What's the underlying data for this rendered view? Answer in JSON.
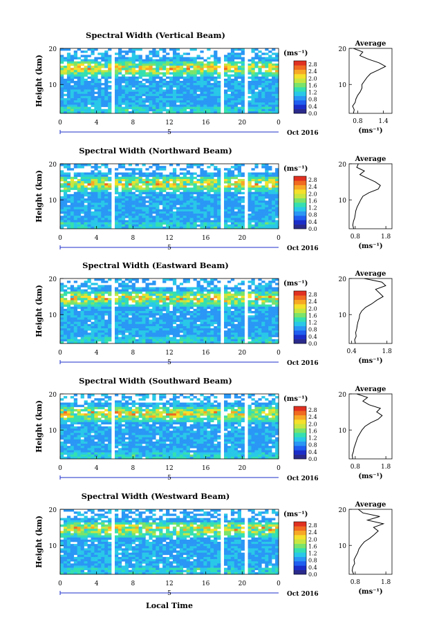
{
  "figure": {
    "xlabel": "Local Time",
    "date_label": "Oct 2016",
    "unit_label": "(ms⁻¹)",
    "ylabel": "Height (km)",
    "avg_title": "Average",
    "colors": {
      "background": "#ffffff",
      "field_base": "#2f55e8",
      "colormap": [
        "#2a2a8c",
        "#1b2dc8",
        "#1f5ef0",
        "#2a96f5",
        "#29c8e8",
        "#35e0b0",
        "#7be36a",
        "#c8e640",
        "#f5e02a",
        "#f7a825",
        "#f06a20",
        "#e03020"
      ]
    }
  },
  "chart_data": [
    {
      "type": "heatmap",
      "title": "Spectral Width (Vertical Beam)",
      "xlabel": "Local Time",
      "ylabel": "Height (km)",
      "x_ticks": [
        "0",
        "4",
        "8",
        "12",
        "16",
        "20",
        "0"
      ],
      "x_sub_label": "5",
      "xlim": [
        0,
        24
      ],
      "y_ticks": [
        "10",
        "20"
      ],
      "ylim": [
        2,
        20
      ],
      "colorbar_label": "(ms⁻¹)",
      "colorbar_ticks": [
        "0.0",
        "0.4",
        "0.8",
        "1.2",
        "1.6",
        "2.0",
        "2.4",
        "2.8"
      ],
      "colorbar_range": [
        0,
        3
      ],
      "data_gaps_hours": [
        [
          5.8,
          6.0
        ],
        [
          17.6,
          17.9
        ],
        [
          20.2,
          20.5
        ]
      ],
      "average": {
        "title": "Average",
        "xlabel": "(ms⁻¹)",
        "x_ticks": [
          "0.8",
          "1.4"
        ],
        "xlim": [
          0.6,
          1.6
        ],
        "y_ticks": [
          "10",
          "20"
        ],
        "height_km": [
          2,
          3,
          4,
          5,
          6,
          7,
          8,
          9,
          10,
          11,
          12,
          13,
          14,
          15,
          16,
          17,
          18,
          19,
          20
        ],
        "value": [
          0.7,
          0.72,
          0.68,
          0.74,
          0.76,
          0.8,
          0.86,
          0.9,
          0.9,
          0.96,
          1.02,
          1.1,
          1.28,
          1.45,
          1.3,
          1.05,
          0.85,
          0.92,
          0.7
        ]
      }
    },
    {
      "type": "heatmap",
      "title": "Spectral Width (Northward Beam)",
      "xlabel": "Local Time",
      "ylabel": "Height (km)",
      "x_ticks": [
        "0",
        "4",
        "8",
        "12",
        "16",
        "20",
        "0"
      ],
      "x_sub_label": "5",
      "xlim": [
        0,
        24
      ],
      "y_ticks": [
        "10",
        "20"
      ],
      "ylim": [
        2,
        20
      ],
      "colorbar_label": "(ms⁻¹)",
      "colorbar_ticks": [
        "0.0",
        "0.4",
        "0.8",
        "1.2",
        "1.6",
        "2.0",
        "2.4",
        "2.8"
      ],
      "colorbar_range": [
        0,
        3
      ],
      "data_gaps_hours": [
        [
          5.8,
          6.0
        ],
        [
          17.6,
          17.9
        ],
        [
          20.2,
          20.5
        ]
      ],
      "average": {
        "title": "Average",
        "xlabel": "(ms⁻¹)",
        "x_ticks": [
          "0.8",
          "1.8"
        ],
        "xlim": [
          0.6,
          2.0
        ],
        "y_ticks": [
          "10",
          "20"
        ],
        "height_km": [
          2,
          3,
          4,
          5,
          6,
          7,
          8,
          9,
          10,
          11,
          12,
          13,
          14,
          15,
          16,
          17,
          18,
          19,
          20
        ],
        "value": [
          0.75,
          0.72,
          0.74,
          0.78,
          0.8,
          0.82,
          0.86,
          0.92,
          0.98,
          1.05,
          1.25,
          1.55,
          1.62,
          1.45,
          1.2,
          0.95,
          1.1,
          0.85,
          0.9
        ]
      }
    },
    {
      "type": "heatmap",
      "title": "Spectral Width (Eastward Beam)",
      "xlabel": "Local Time",
      "ylabel": "Height (km)",
      "x_ticks": [
        "0",
        "4",
        "8",
        "12",
        "16",
        "20",
        "0"
      ],
      "x_sub_label": "5",
      "xlim": [
        0,
        24
      ],
      "y_ticks": [
        "10",
        "20"
      ],
      "ylim": [
        2,
        20
      ],
      "colorbar_label": "(ms⁻¹)",
      "colorbar_ticks": [
        "0.0",
        "0.4",
        "0.8",
        "1.2",
        "1.6",
        "2.0",
        "2.4",
        "2.8"
      ],
      "colorbar_range": [
        0,
        3
      ],
      "data_gaps_hours": [
        [
          5.8,
          6.0
        ],
        [
          17.6,
          17.9
        ],
        [
          20.2,
          20.5
        ]
      ],
      "average": {
        "title": "Average",
        "xlabel": "(ms⁻¹)",
        "x_ticks": [
          "0.4",
          "1.8"
        ],
        "xlim": [
          0.3,
          2.0
        ],
        "y_ticks": [
          "10",
          "20"
        ],
        "height_km": [
          2,
          3,
          4,
          5,
          6,
          7,
          8,
          9,
          10,
          11,
          12,
          13,
          14,
          15,
          16,
          17,
          18,
          19,
          20
        ],
        "value": [
          0.55,
          0.52,
          0.58,
          0.56,
          0.6,
          0.62,
          0.65,
          0.7,
          0.72,
          0.8,
          0.95,
          1.2,
          1.4,
          1.65,
          1.5,
          1.35,
          1.75,
          1.6,
          0.9
        ]
      }
    },
    {
      "type": "heatmap",
      "title": "Spectral Width (Southward Beam)",
      "xlabel": "Local Time",
      "ylabel": "Height (km)",
      "x_ticks": [
        "0",
        "4",
        "8",
        "12",
        "16",
        "20",
        "0"
      ],
      "x_sub_label": "5",
      "xlim": [
        0,
        24
      ],
      "y_ticks": [
        "10",
        "20"
      ],
      "ylim": [
        2,
        20
      ],
      "colorbar_label": "(ms⁻¹)",
      "colorbar_ticks": [
        "0.0",
        "0.4",
        "0.8",
        "1.2",
        "1.6",
        "2.0",
        "2.4",
        "2.8"
      ],
      "colorbar_range": [
        0,
        3
      ],
      "data_gaps_hours": [
        [
          5.8,
          6.0
        ],
        [
          17.6,
          17.9
        ],
        [
          20.2,
          20.5
        ]
      ],
      "average": {
        "title": "Average",
        "xlabel": "(ms⁻¹)",
        "x_ticks": [
          "0.8",
          "1.8"
        ],
        "xlim": [
          0.6,
          2.0
        ],
        "y_ticks": [
          "10",
          "20"
        ],
        "height_km": [
          2,
          3,
          4,
          5,
          6,
          7,
          8,
          9,
          10,
          11,
          12,
          13,
          14,
          15,
          16,
          17,
          18,
          19,
          20
        ],
        "value": [
          0.72,
          0.7,
          0.74,
          0.76,
          0.8,
          0.84,
          0.88,
          0.95,
          1.02,
          1.12,
          1.3,
          1.55,
          1.68,
          1.5,
          1.62,
          1.25,
          1.05,
          1.2,
          0.85
        ]
      }
    },
    {
      "type": "heatmap",
      "title": "Spectral Width (Westward Beam)",
      "xlabel": "Local Time",
      "ylabel": "Height (km)",
      "x_ticks": [
        "0",
        "4",
        "8",
        "12",
        "16",
        "20",
        "0"
      ],
      "x_sub_label": "5",
      "xlim": [
        0,
        24
      ],
      "y_ticks": [
        "10",
        "20"
      ],
      "ylim": [
        2,
        20
      ],
      "colorbar_label": "(ms⁻¹)",
      "colorbar_ticks": [
        "0.0",
        "0.4",
        "0.8",
        "1.2",
        "1.6",
        "2.0",
        "2.4",
        "2.8"
      ],
      "colorbar_range": [
        0,
        3
      ],
      "data_gaps_hours": [
        [
          5.8,
          6.0
        ],
        [
          17.6,
          17.9
        ],
        [
          20.2,
          20.5
        ]
      ],
      "average": {
        "title": "Average",
        "xlabel": "(ms⁻¹)",
        "x_ticks": [
          "0.8",
          "1.8"
        ],
        "xlim": [
          0.6,
          2.0
        ],
        "y_ticks": [
          "10",
          "20"
        ],
        "height_km": [
          2,
          3,
          4,
          5,
          6,
          7,
          8,
          9,
          10,
          11,
          12,
          13,
          14,
          15,
          16,
          17,
          18,
          19,
          20
        ],
        "value": [
          0.75,
          0.7,
          0.72,
          0.78,
          0.76,
          0.82,
          0.88,
          0.92,
          1.0,
          1.1,
          1.28,
          1.42,
          1.55,
          1.4,
          1.72,
          1.2,
          1.6,
          1.05,
          0.9
        ]
      }
    }
  ]
}
